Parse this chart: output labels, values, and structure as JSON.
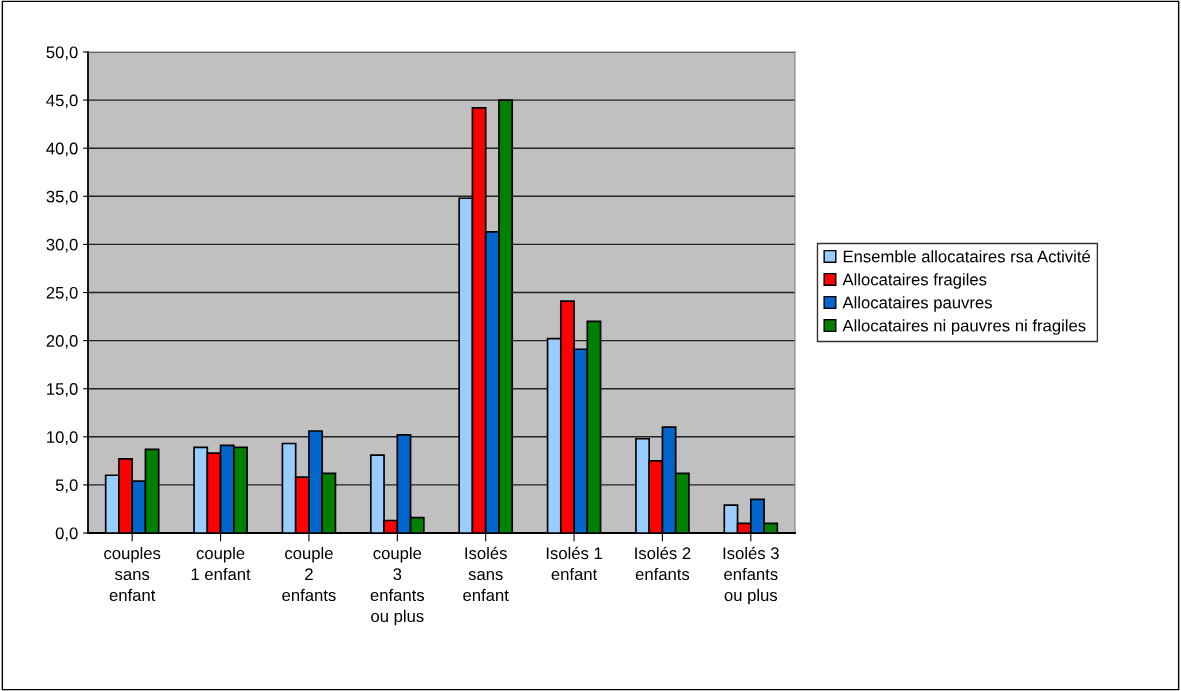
{
  "chart_data": {
    "type": "bar",
    "categories": [
      "couples\nsans\nenfant",
      "couple\n1 enfant",
      "couple\n2\nenfants",
      "couple\n3\nenfants\nou plus",
      "Isolés\nsans\nenfant",
      "Isolés 1\nenfant",
      "Isolés 2\nenfants",
      "Isolés 3\nenfants\nou plus"
    ],
    "series": [
      {
        "name": "Ensemble allocataires rsa Activité",
        "color": "#99ccff",
        "values": [
          6.0,
          8.9,
          9.3,
          8.1,
          34.8,
          20.2,
          9.8,
          2.9
        ]
      },
      {
        "name": "Allocataires fragiles",
        "color": "#ff0000",
        "values": [
          7.7,
          8.3,
          5.8,
          1.3,
          44.2,
          24.1,
          7.5,
          1.0
        ]
      },
      {
        "name": "Allocataires pauvres",
        "color": "#0066cc",
        "values": [
          5.4,
          9.1,
          10.6,
          10.2,
          31.3,
          19.1,
          11.0,
          3.5
        ]
      },
      {
        "name": "Allocataires ni pauvres ni fragiles",
        "color": "#008000",
        "values": [
          8.7,
          8.9,
          6.2,
          1.6,
          45.0,
          22.0,
          6.2,
          1.0
        ]
      }
    ],
    "ylim": [
      0,
      50
    ],
    "yticks": [
      {
        "value": 0,
        "label": "0,0"
      },
      {
        "value": 5,
        "label": "5,0"
      },
      {
        "value": 10,
        "label": "10,0"
      },
      {
        "value": 15,
        "label": "15,0"
      },
      {
        "value": 20,
        "label": "20,0"
      },
      {
        "value": 25,
        "label": "25,0"
      },
      {
        "value": 30,
        "label": "30,0"
      },
      {
        "value": 35,
        "label": "35,0"
      },
      {
        "value": 40,
        "label": "40,0"
      },
      {
        "value": 45,
        "label": "45,0"
      },
      {
        "value": 50,
        "label": "50,0"
      }
    ],
    "grid": "y",
    "legend": "right"
  }
}
